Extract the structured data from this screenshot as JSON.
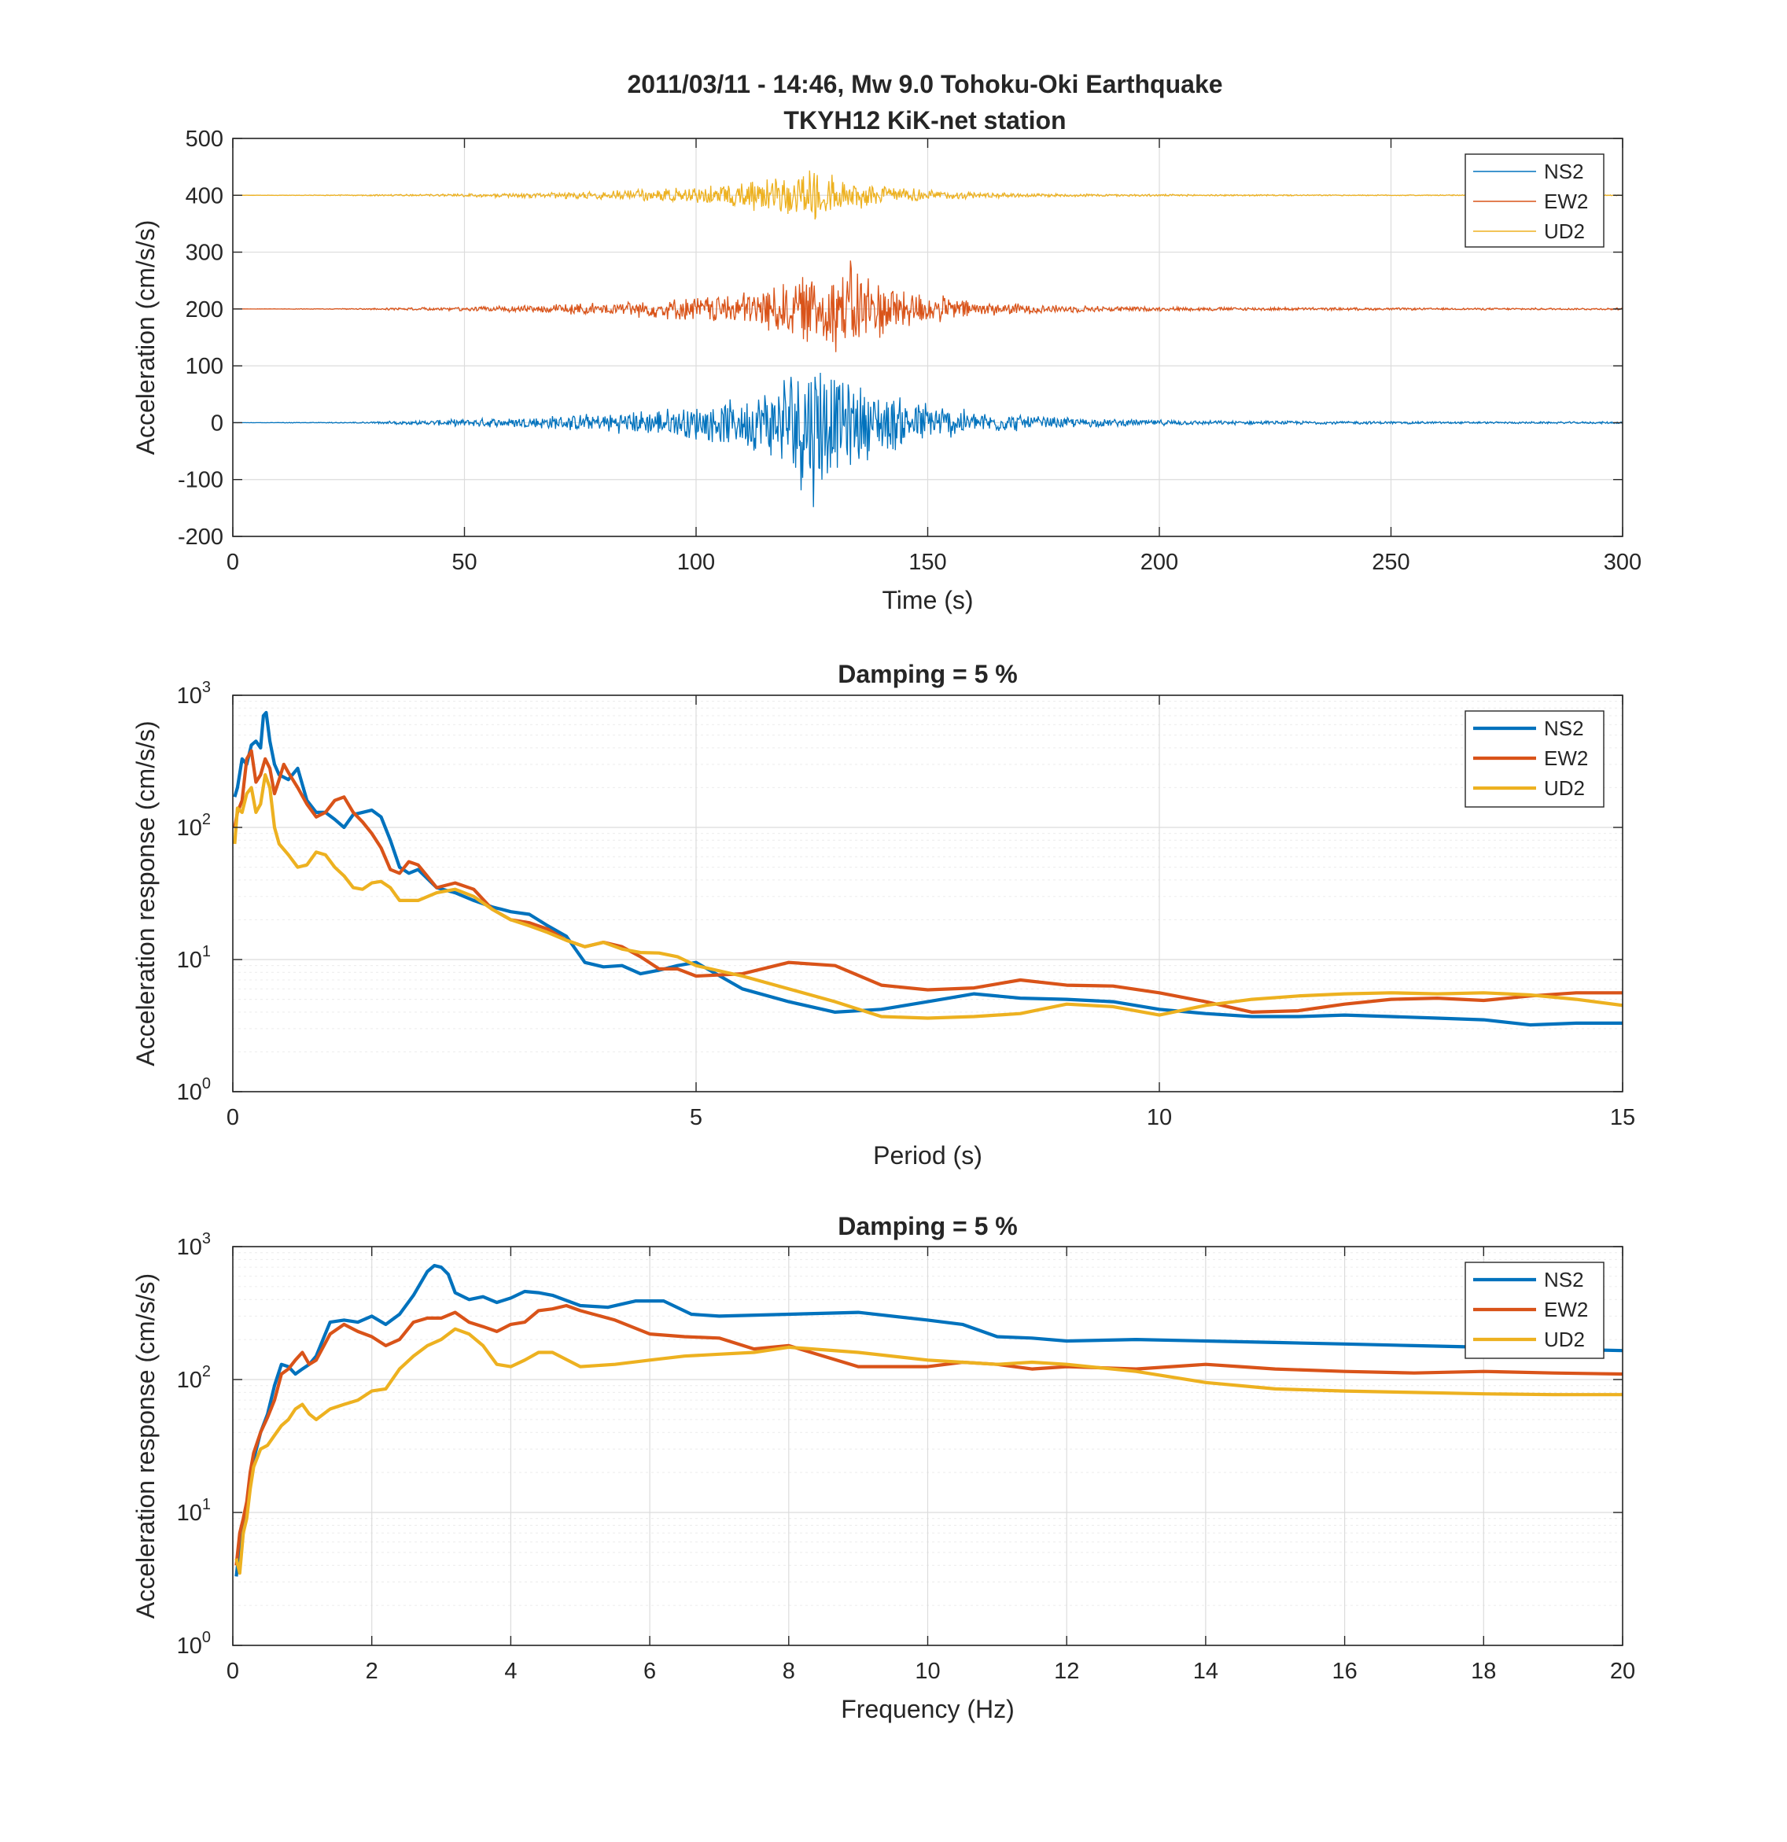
{
  "figure": {
    "title_line1": "2011/03/11 - 14:46, Mw 9.0 Tohoku-Oki Earthquake",
    "title_line2": "TKYH12 KiK-net station"
  },
  "colors": {
    "NS2": "#0072BD",
    "EW2": "#D95319",
    "UD2": "#EDB120"
  },
  "chart_data": [
    {
      "type": "line",
      "subtype": "time-series (accelerogram)",
      "title": "",
      "xlabel": "Time (s)",
      "ylabel": "Acceleration (cm/s/s)",
      "xlim": [
        0,
        300
      ],
      "ylim": [
        -200,
        500
      ],
      "xticks": [
        0,
        50,
        100,
        150,
        200,
        250,
        300
      ],
      "yticks": [
        -200,
        -100,
        0,
        100,
        200,
        300,
        400,
        500
      ],
      "grid": true,
      "legend": "top-right",
      "line_style": "thin",
      "series": [
        {
          "name": "NS2",
          "offset": 0,
          "envelope_t": [
            0,
            25,
            40,
            60,
            80,
            95,
            110,
            118,
            122,
            126,
            130,
            140,
            150,
            160,
            175,
            190,
            210,
            240,
            270,
            300
          ],
          "envelope_a": [
            0,
            1,
            4,
            10,
            18,
            28,
            45,
            80,
            130,
            160,
            90,
            60,
            40,
            22,
            12,
            7,
            4,
            3,
            2,
            2
          ]
        },
        {
          "name": "EW2",
          "offset": 200,
          "envelope_t": [
            0,
            25,
            40,
            60,
            80,
            95,
            110,
            120,
            128,
            133,
            138,
            145,
            155,
            165,
            180,
            200,
            230,
            260,
            300
          ],
          "envelope_a": [
            0,
            1,
            3,
            6,
            12,
            20,
            32,
            55,
            75,
            95,
            65,
            40,
            22,
            12,
            7,
            4,
            3,
            2,
            2
          ]
        },
        {
          "name": "UD2",
          "offset": 400,
          "envelope_t": [
            0,
            25,
            40,
            60,
            80,
            95,
            110,
            118,
            124,
            130,
            140,
            150,
            165,
            180,
            200,
            240,
            300
          ],
          "envelope_a": [
            0,
            1,
            2,
            4,
            8,
            14,
            25,
            40,
            55,
            35,
            20,
            10,
            5,
            3,
            2,
            1,
            1
          ]
        }
      ]
    },
    {
      "type": "line",
      "title": "Damping = 5 %",
      "xlabel": "Period (s)",
      "ylabel": "Acceleration response (cm/s/s)",
      "xlim": [
        0,
        15
      ],
      "ylim": [
        1,
        1000
      ],
      "yscale": "log",
      "xticks": [
        0,
        5,
        10,
        15
      ],
      "yticks": [
        1,
        10,
        100,
        1000
      ],
      "grid": true,
      "legend": "top-right",
      "series": [
        {
          "name": "NS2",
          "x": [
            0.02,
            0.05,
            0.1,
            0.15,
            0.2,
            0.25,
            0.3,
            0.33,
            0.36,
            0.4,
            0.45,
            0.5,
            0.6,
            0.7,
            0.8,
            0.9,
            1.0,
            1.1,
            1.2,
            1.3,
            1.4,
            1.5,
            1.6,
            1.7,
            1.8,
            1.9,
            2.0,
            2.2,
            2.4,
            2.6,
            2.8,
            3.0,
            3.2,
            3.4,
            3.6,
            3.8,
            4.0,
            4.2,
            4.4,
            4.6,
            4.8,
            5.0,
            5.5,
            6.0,
            6.5,
            7.0,
            7.5,
            8.0,
            8.5,
            9.0,
            9.5,
            10.0,
            10.5,
            11.0,
            11.5,
            12.0,
            12.5,
            13.0,
            13.5,
            14.0,
            14.5,
            15.0
          ],
          "values": [
            170,
            200,
            330,
            300,
            420,
            450,
            400,
            700,
            740,
            450,
            300,
            250,
            230,
            280,
            160,
            130,
            130,
            115,
            100,
            125,
            130,
            135,
            120,
            80,
            50,
            45,
            48,
            35,
            32,
            28,
            25,
            23,
            22,
            18,
            15,
            9.5,
            8.8,
            9.0,
            7.8,
            8.3,
            9.0,
            9.5,
            6.0,
            4.8,
            4.0,
            4.2,
            4.8,
            5.5,
            5.1,
            5.0,
            4.8,
            4.2,
            3.9,
            3.7,
            3.7,
            3.8,
            3.7,
            3.6,
            3.5,
            3.2,
            3.3,
            3.3
          ]
        },
        {
          "name": "EW2",
          "x": [
            0.02,
            0.05,
            0.1,
            0.15,
            0.2,
            0.25,
            0.3,
            0.35,
            0.4,
            0.45,
            0.5,
            0.55,
            0.6,
            0.7,
            0.8,
            0.9,
            1.0,
            1.1,
            1.2,
            1.3,
            1.4,
            1.5,
            1.6,
            1.7,
            1.8,
            1.9,
            2.0,
            2.2,
            2.4,
            2.6,
            2.8,
            3.0,
            3.2,
            3.4,
            3.6,
            3.8,
            4.0,
            4.2,
            4.4,
            4.6,
            4.8,
            5.0,
            5.5,
            6.0,
            6.5,
            7.0,
            7.5,
            8.0,
            8.5,
            9.0,
            9.5,
            10.0,
            10.5,
            11.0,
            11.5,
            12.0,
            12.5,
            13.0,
            13.5,
            14.0,
            14.5,
            15.0
          ],
          "values": [
            100,
            130,
            160,
            330,
            380,
            220,
            250,
            330,
            280,
            180,
            230,
            300,
            260,
            200,
            150,
            120,
            130,
            160,
            170,
            130,
            110,
            90,
            70,
            48,
            45,
            55,
            52,
            35,
            38,
            34,
            24,
            20,
            19,
            17,
            14,
            12.5,
            13.5,
            12.5,
            10.5,
            8.5,
            8.5,
            7.5,
            7.8,
            9.5,
            9.0,
            6.4,
            5.9,
            6.1,
            7.0,
            6.4,
            6.3,
            5.6,
            4.8,
            4.0,
            4.1,
            4.6,
            5.0,
            5.1,
            4.9,
            5.3,
            5.6,
            5.6
          ]
        },
        {
          "name": "UD2",
          "x": [
            0.02,
            0.05,
            0.1,
            0.15,
            0.2,
            0.25,
            0.3,
            0.35,
            0.4,
            0.45,
            0.5,
            0.6,
            0.7,
            0.8,
            0.9,
            1.0,
            1.1,
            1.2,
            1.3,
            1.4,
            1.5,
            1.6,
            1.7,
            1.8,
            2.0,
            2.2,
            2.4,
            2.6,
            2.8,
            3.0,
            3.2,
            3.4,
            3.6,
            3.8,
            4.0,
            4.2,
            4.4,
            4.6,
            4.8,
            5.0,
            5.5,
            6.0,
            6.5,
            7.0,
            7.5,
            8.0,
            8.5,
            9.0,
            9.5,
            10.0,
            10.5,
            11.0,
            11.5,
            12.0,
            12.5,
            13.0,
            13.5,
            14.0,
            14.5,
            15.0
          ],
          "values": [
            75,
            140,
            130,
            180,
            200,
            130,
            150,
            250,
            200,
            100,
            75,
            62,
            50,
            52,
            65,
            62,
            50,
            43,
            35,
            34,
            38,
            39,
            35,
            28,
            28,
            32,
            34,
            30,
            24,
            20,
            18,
            16,
            14,
            12.5,
            13.5,
            12,
            11.3,
            11.2,
            10.5,
            9.0,
            7.5,
            6.0,
            4.8,
            3.7,
            3.6,
            3.7,
            3.9,
            4.6,
            4.4,
            3.8,
            4.5,
            5.0,
            5.3,
            5.5,
            5.6,
            5.5,
            5.6,
            5.4,
            5.0,
            4.5
          ]
        }
      ]
    },
    {
      "type": "line",
      "title": "Damping = 5 %",
      "xlabel": "Frequency (Hz)",
      "ylabel": "Acceleration response (cm/s/s)",
      "xlim": [
        0,
        20
      ],
      "ylim": [
        1,
        1000
      ],
      "yscale": "log",
      "xticks": [
        0,
        2,
        4,
        6,
        8,
        10,
        12,
        14,
        16,
        18,
        20
      ],
      "yticks": [
        1,
        10,
        100,
        1000
      ],
      "grid": true,
      "legend": "top-right",
      "series": [
        {
          "name": "NS2",
          "x": [
            0.05,
            0.1,
            0.15,
            0.2,
            0.25,
            0.3,
            0.4,
            0.5,
            0.6,
            0.7,
            0.8,
            0.9,
            1.0,
            1.1,
            1.2,
            1.4,
            1.6,
            1.8,
            2.0,
            2.2,
            2.4,
            2.6,
            2.8,
            2.9,
            3.0,
            3.1,
            3.2,
            3.4,
            3.6,
            3.8,
            4.0,
            4.2,
            4.4,
            4.6,
            5.0,
            5.4,
            5.8,
            6.2,
            6.6,
            7.0,
            8.0,
            9.0,
            10.0,
            10.5,
            11.0,
            11.5,
            12.0,
            13.0,
            14.0,
            15.0,
            16.0,
            17.0,
            18.0,
            19.0,
            20.0
          ],
          "values": [
            3.3,
            5.5,
            8,
            9.5,
            18,
            25,
            40,
            55,
            90,
            130,
            125,
            110,
            120,
            130,
            150,
            270,
            280,
            270,
            300,
            260,
            310,
            430,
            650,
            720,
            700,
            620,
            450,
            400,
            420,
            380,
            410,
            460,
            450,
            430,
            360,
            350,
            390,
            390,
            310,
            300,
            310,
            320,
            280,
            260,
            210,
            205,
            195,
            200,
            195,
            190,
            185,
            180,
            175,
            170,
            165
          ]
        },
        {
          "name": "EW2",
          "x": [
            0.05,
            0.1,
            0.15,
            0.2,
            0.25,
            0.3,
            0.4,
            0.5,
            0.6,
            0.7,
            0.8,
            0.9,
            1.0,
            1.1,
            1.2,
            1.4,
            1.6,
            1.8,
            2.0,
            2.2,
            2.4,
            2.6,
            2.8,
            3.0,
            3.2,
            3.4,
            3.6,
            3.8,
            4.0,
            4.2,
            4.4,
            4.6,
            4.8,
            5.0,
            5.5,
            6.0,
            6.5,
            7.0,
            7.5,
            8.0,
            9.0,
            10.0,
            10.5,
            11.0,
            11.5,
            12.0,
            13.0,
            14.0,
            14.5,
            15.0,
            16.0,
            17.0,
            18.0,
            19.0,
            20.0
          ],
          "values": [
            4,
            7,
            9,
            12,
            20,
            28,
            40,
            52,
            70,
            110,
            120,
            140,
            160,
            130,
            140,
            220,
            260,
            230,
            210,
            180,
            200,
            270,
            290,
            290,
            320,
            270,
            250,
            230,
            260,
            270,
            330,
            340,
            360,
            330,
            280,
            220,
            210,
            205,
            170,
            180,
            125,
            125,
            135,
            130,
            120,
            125,
            120,
            130,
            125,
            120,
            115,
            112,
            115,
            112,
            110
          ]
        },
        {
          "name": "UD2",
          "x": [
            0.05,
            0.1,
            0.15,
            0.2,
            0.25,
            0.3,
            0.4,
            0.5,
            0.6,
            0.7,
            0.8,
            0.9,
            1.0,
            1.1,
            1.2,
            1.4,
            1.6,
            1.8,
            2.0,
            2.2,
            2.4,
            2.6,
            2.8,
            3.0,
            3.2,
            3.4,
            3.6,
            3.8,
            4.0,
            4.2,
            4.4,
            4.6,
            5.0,
            5.5,
            6.0,
            6.5,
            7.0,
            7.5,
            8.0,
            9.0,
            10.0,
            10.5,
            11.0,
            11.5,
            12.0,
            13.0,
            14.0,
            15.0,
            16.0,
            17.0,
            18.0,
            19.0,
            20.0
          ],
          "values": [
            4.5,
            3.5,
            7,
            9,
            15,
            22,
            30,
            32,
            38,
            45,
            50,
            60,
            65,
            55,
            50,
            60,
            65,
            70,
            82,
            85,
            120,
            150,
            180,
            200,
            240,
            220,
            180,
            130,
            125,
            140,
            160,
            160,
            125,
            130,
            140,
            150,
            155,
            160,
            175,
            160,
            140,
            135,
            130,
            135,
            130,
            115,
            95,
            85,
            82,
            80,
            78,
            77,
            77
          ]
        }
      ]
    }
  ]
}
